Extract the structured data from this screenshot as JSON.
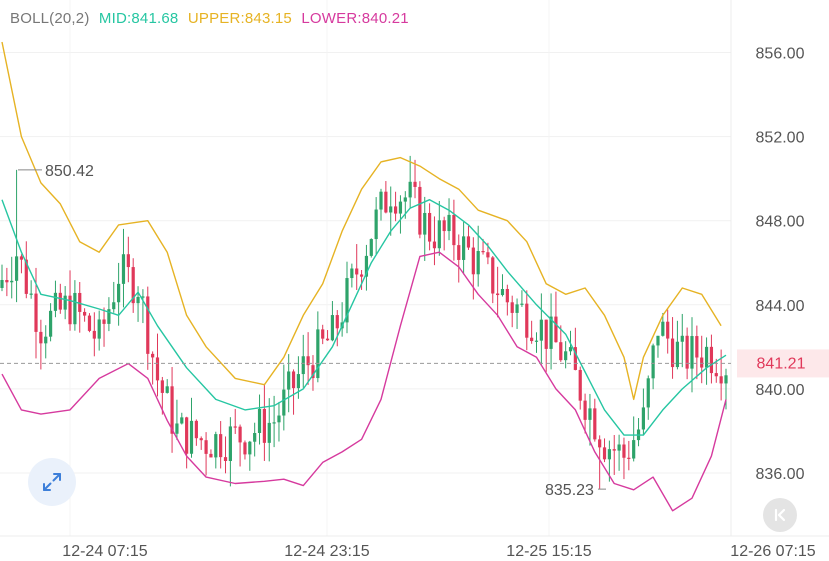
{
  "legend": {
    "boll": "BOLL(20,2)",
    "mid": "MID:841.68",
    "upper": "UPPER:843.15",
    "lower": "LOWER:840.21"
  },
  "colors": {
    "up": "#2ea36a",
    "down": "#e0385a",
    "mid": "#26c6a2",
    "upper": "#e6b324",
    "lower": "#d63a9e",
    "legend_boll": "#777777",
    "axis_text": "#555555",
    "price_tag_bg": "#fde8ea",
    "price_tag_text": "#e0385a",
    "expand_icon": "#3d7fd9",
    "back_icon": "#ffffff"
  },
  "icons": {
    "expand": "expand-arrows-icon",
    "back": "chevron-left-bar-icon"
  },
  "chart_data": {
    "type": "candlestick",
    "indicator": "BOLL(20,2)",
    "ylim": [
      833.0,
      858.5
    ],
    "y_ticks": [
      {
        "value": 856.0,
        "label": "856.00"
      },
      {
        "value": 852.0,
        "label": "852.00"
      },
      {
        "value": 848.0,
        "label": "848.00"
      },
      {
        "value": 844.0,
        "label": "844.00"
      },
      {
        "value": 840.0,
        "label": "840.00"
      },
      {
        "value": 836.0,
        "label": "836.00"
      }
    ],
    "x_ticks": [
      "12-24 07:15",
      "12-24 23:15",
      "12-25 15:15",
      "12-26 07:15"
    ],
    "current_price": {
      "value": 841.21,
      "label": "841.21"
    },
    "annotations": [
      {
        "label": "850.42",
        "value": 850.42,
        "kind": "high"
      },
      {
        "label": "835.23",
        "value": 835.23,
        "kind": "low"
      }
    ],
    "candles": {
      "count": 150,
      "close_anchors": [
        [
          0,
          845.2
        ],
        [
          3,
          846.5
        ],
        [
          8,
          843.0
        ],
        [
          14,
          844.0
        ],
        [
          20,
          842.3
        ],
        [
          24,
          845.5
        ],
        [
          28,
          845.0
        ],
        [
          32,
          840.5
        ],
        [
          36,
          838.0
        ],
        [
          42,
          837.5
        ],
        [
          50,
          837.8
        ],
        [
          56,
          838.5
        ],
        [
          62,
          841.0
        ],
        [
          68,
          842.5
        ],
        [
          72,
          845.0
        ],
        [
          76,
          847.5
        ],
        [
          80,
          849.5
        ],
        [
          84,
          849.0
        ],
        [
          88,
          847.5
        ],
        [
          93,
          847.2
        ],
        [
          98,
          846.0
        ],
        [
          104,
          844.2
        ],
        [
          110,
          843.2
        ],
        [
          116,
          841.5
        ],
        [
          120,
          839.5
        ],
        [
          124,
          837.5
        ],
        [
          128,
          836.8
        ],
        [
          132,
          838.5
        ],
        [
          135,
          843.0
        ],
        [
          140,
          841.5
        ],
        [
          145,
          841.8
        ],
        [
          149,
          841.2
        ]
      ],
      "wicks": [
        {
          "index": 3,
          "high": 850.42
        },
        {
          "index": 123,
          "low": 835.23
        }
      ]
    },
    "series": [
      {
        "name": "MID",
        "points": [
          [
            0,
            849.0
          ],
          [
            4,
            846.5
          ],
          [
            8,
            844.5
          ],
          [
            14,
            844.2
          ],
          [
            20,
            843.8
          ],
          [
            24,
            843.5
          ],
          [
            28,
            844.6
          ],
          [
            32,
            843.0
          ],
          [
            38,
            841.0
          ],
          [
            44,
            839.5
          ],
          [
            50,
            839.0
          ],
          [
            56,
            839.2
          ],
          [
            62,
            840.0
          ],
          [
            68,
            842.0
          ],
          [
            72,
            844.0
          ],
          [
            76,
            846.0
          ],
          [
            80,
            847.5
          ],
          [
            84,
            848.6
          ],
          [
            88,
            849.0
          ],
          [
            92,
            848.5
          ],
          [
            96,
            847.8
          ],
          [
            100,
            846.8
          ],
          [
            104,
            845.6
          ],
          [
            110,
            844.0
          ],
          [
            116,
            842.6
          ],
          [
            120,
            840.8
          ],
          [
            124,
            839.0
          ],
          [
            128,
            837.8
          ],
          [
            132,
            837.8
          ],
          [
            136,
            839.0
          ],
          [
            140,
            840.0
          ],
          [
            145,
            841.0
          ],
          [
            149,
            841.6
          ]
        ]
      },
      {
        "name": "UPPER",
        "points": [
          [
            0,
            856.5
          ],
          [
            4,
            852.0
          ],
          [
            8,
            849.8
          ],
          [
            12,
            848.8
          ],
          [
            16,
            847.0
          ],
          [
            20,
            846.5
          ],
          [
            24,
            847.8
          ],
          [
            30,
            848.0
          ],
          [
            34,
            846.5
          ],
          [
            38,
            843.5
          ],
          [
            42,
            842.0
          ],
          [
            48,
            840.5
          ],
          [
            54,
            840.2
          ],
          [
            58,
            841.5
          ],
          [
            62,
            843.5
          ],
          [
            66,
            845.0
          ],
          [
            70,
            847.5
          ],
          [
            74,
            849.5
          ],
          [
            78,
            850.8
          ],
          [
            82,
            851.0
          ],
          [
            86,
            850.6
          ],
          [
            90,
            850.0
          ],
          [
            94,
            849.5
          ],
          [
            98,
            848.5
          ],
          [
            104,
            848.0
          ],
          [
            108,
            847.0
          ],
          [
            112,
            845.0
          ],
          [
            116,
            844.5
          ],
          [
            120,
            844.8
          ],
          [
            124,
            843.5
          ],
          [
            128,
            841.5
          ],
          [
            130,
            839.5
          ],
          [
            132,
            841.5
          ],
          [
            136,
            843.5
          ],
          [
            140,
            844.8
          ],
          [
            144,
            844.5
          ],
          [
            148,
            843.0
          ]
        ]
      },
      {
        "name": "LOWER",
        "points": [
          [
            0,
            840.7
          ],
          [
            4,
            839.0
          ],
          [
            8,
            838.8
          ],
          [
            14,
            839.0
          ],
          [
            20,
            840.5
          ],
          [
            26,
            841.2
          ],
          [
            30,
            840.5
          ],
          [
            34,
            838.5
          ],
          [
            38,
            836.8
          ],
          [
            42,
            835.8
          ],
          [
            48,
            835.5
          ],
          [
            54,
            835.6
          ],
          [
            58,
            835.7
          ],
          [
            62,
            835.4
          ],
          [
            66,
            836.5
          ],
          [
            70,
            837.0
          ],
          [
            74,
            837.6
          ],
          [
            78,
            839.5
          ],
          [
            82,
            843.0
          ],
          [
            86,
            846.3
          ],
          [
            90,
            846.5
          ],
          [
            94,
            845.8
          ],
          [
            98,
            844.5
          ],
          [
            102,
            843.5
          ],
          [
            106,
            842.0
          ],
          [
            110,
            841.5
          ],
          [
            114,
            840.0
          ],
          [
            118,
            839.0
          ],
          [
            122,
            837.0
          ],
          [
            126,
            835.5
          ],
          [
            130,
            835.2
          ],
          [
            134,
            835.8
          ],
          [
            138,
            834.2
          ],
          [
            142,
            834.8
          ],
          [
            146,
            836.8
          ],
          [
            149,
            839.5
          ]
        ]
      }
    ]
  }
}
